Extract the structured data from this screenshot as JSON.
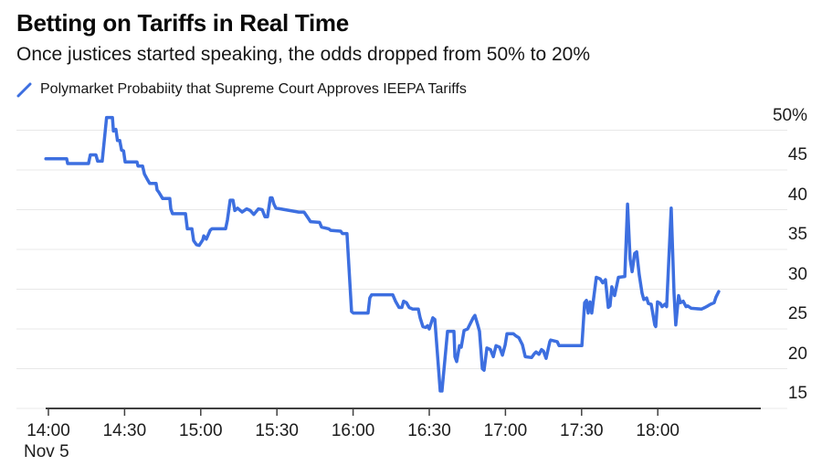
{
  "header": {
    "title": "Betting on Tariffs in Real Time",
    "subtitle": "Once justices started speaking, the odds dropped from 50% to 20%"
  },
  "legend": {
    "label": "Polymarket Probabiity that Supreme Court Approves IEEPA Tariffs"
  },
  "colors": {
    "line": "#3D6FE0",
    "grid": "#e8e8e8",
    "axis": "#404040",
    "text": "#1c1c1c"
  },
  "chart_data": {
    "type": "line",
    "title": "Betting on Tariffs in Real Time",
    "subtitle": "Once justices started speaking, the odds dropped from 50% to 20%",
    "x_axis": {
      "date_label": "Nov 5",
      "tick_labels": [
        "14:00",
        "14:30",
        "15:00",
        "15:30",
        "16:00",
        "16:30",
        "17:00",
        "17:30",
        "18:00"
      ],
      "tick_minutes": [
        0,
        30,
        60,
        90,
        120,
        150,
        180,
        210,
        240
      ],
      "unit": "time of day"
    },
    "y_axis": {
      "tick_labels": [
        "50%",
        "45",
        "40",
        "35",
        "30",
        "25",
        "20",
        "15"
      ],
      "tick_values": [
        50,
        45,
        40,
        35,
        30,
        25,
        20,
        15
      ],
      "min": 15,
      "max": 50,
      "unit": "percent probability"
    },
    "grid": true,
    "legend_position": "top-left",
    "series": [
      {
        "name": "Polymarket Probabiity that Supreme Court Approves IEEPA Tariffs",
        "color": "#3D6FE0",
        "points": [
          [
            -1,
            46.4
          ],
          [
            7.2,
            46.4
          ],
          [
            7.6,
            45.8
          ],
          [
            15.8,
            45.8
          ],
          [
            16.5,
            46.9
          ],
          [
            18.7,
            46.9
          ],
          [
            19.4,
            46.1
          ],
          [
            21.2,
            46.1
          ],
          [
            22.9,
            51.6
          ],
          [
            25.2,
            51.6
          ],
          [
            25.6,
            49.9
          ],
          [
            26.6,
            50.1
          ],
          [
            27.2,
            48.7
          ],
          [
            28.1,
            48.7
          ],
          [
            28.8,
            47.5
          ],
          [
            29.6,
            47.4
          ],
          [
            30.2,
            46
          ],
          [
            34.9,
            46
          ],
          [
            35.3,
            45.5
          ],
          [
            37.1,
            45.5
          ],
          [
            37.8,
            44.5
          ],
          [
            38.8,
            43.9
          ],
          [
            39.9,
            43.3
          ],
          [
            42.4,
            43.3
          ],
          [
            42.8,
            42.5
          ],
          [
            43.5,
            42.2
          ],
          [
            45,
            41.4
          ],
          [
            47.8,
            41.4
          ],
          [
            48.2,
            40.1
          ],
          [
            48.9,
            39.5
          ],
          [
            54,
            39.5
          ],
          [
            54.7,
            37.6
          ],
          [
            56.5,
            37.6
          ],
          [
            57.2,
            36.1
          ],
          [
            58.3,
            35.6
          ],
          [
            59.4,
            35.5
          ],
          [
            60.8,
            36.2
          ],
          [
            61.2,
            36.7
          ],
          [
            62.2,
            36.3
          ],
          [
            63.7,
            37.4
          ],
          [
            64.4,
            37.6
          ],
          [
            69.8,
            37.6
          ],
          [
            70.5,
            38.7
          ],
          [
            71.6,
            41.2
          ],
          [
            72.7,
            41.2
          ],
          [
            73.4,
            39.9
          ],
          [
            74.5,
            40.2
          ],
          [
            76.3,
            39.7
          ],
          [
            78.1,
            40.1
          ],
          [
            79.5,
            39.9
          ],
          [
            80.9,
            39.4
          ],
          [
            82.7,
            40.1
          ],
          [
            84.2,
            40
          ],
          [
            85.3,
            39.1
          ],
          [
            86.3,
            39.1
          ],
          [
            87.4,
            41.5
          ],
          [
            88.1,
            41.5
          ],
          [
            88.8,
            40.7
          ],
          [
            89.6,
            40.2
          ],
          [
            91.4,
            40.1
          ],
          [
            95,
            39.9
          ],
          [
            98.6,
            39.7
          ],
          [
            100.7,
            39.7
          ],
          [
            102.2,
            39
          ],
          [
            103.2,
            38.5
          ],
          [
            106.8,
            38.4
          ],
          [
            107.6,
            37.8
          ],
          [
            110.4,
            37.6
          ],
          [
            111.2,
            37.4
          ],
          [
            115.1,
            37.3
          ],
          [
            115.8,
            37
          ],
          [
            117.6,
            37
          ],
          [
            119.4,
            27.2
          ],
          [
            120.1,
            27
          ],
          [
            125.9,
            27
          ],
          [
            126.6,
            28.9
          ],
          [
            127.3,
            29.3
          ],
          [
            135.6,
            29.3
          ],
          [
            136.7,
            28.5
          ],
          [
            138.1,
            27.7
          ],
          [
            139.2,
            27.7
          ],
          [
            139.9,
            28.5
          ],
          [
            141,
            28.3
          ],
          [
            142.1,
            27.7
          ],
          [
            143.5,
            27.5
          ],
          [
            145.7,
            27.5
          ],
          [
            146.4,
            26.4
          ],
          [
            147.5,
            25.3
          ],
          [
            148.6,
            25.2
          ],
          [
            149.3,
            25.4
          ],
          [
            150,
            25
          ],
          [
            151.4,
            26.4
          ],
          [
            152.2,
            26.2
          ],
          [
            154.3,
            17.2
          ],
          [
            155,
            17.2
          ],
          [
            157.2,
            24.7
          ],
          [
            159.7,
            24.7
          ],
          [
            160.1,
            21.5
          ],
          [
            160.8,
            20.9
          ],
          [
            161.9,
            22.9
          ],
          [
            162.6,
            22.7
          ],
          [
            163.7,
            24.8
          ],
          [
            165.1,
            25
          ],
          [
            167.3,
            26.4
          ],
          [
            168,
            26.7
          ],
          [
            169.1,
            25.5
          ],
          [
            169.8,
            24.7
          ],
          [
            170.9,
            20
          ],
          [
            171.6,
            19.8
          ],
          [
            172.7,
            22.6
          ],
          [
            174.1,
            22.4
          ],
          [
            175.2,
            21.5
          ],
          [
            176.3,
            22.9
          ],
          [
            177.7,
            22.7
          ],
          [
            178.8,
            21.7
          ],
          [
            179.9,
            23
          ],
          [
            180.6,
            24.4
          ],
          [
            183.1,
            24.4
          ],
          [
            184.2,
            24.1
          ],
          [
            185.3,
            23.9
          ],
          [
            186.7,
            23
          ],
          [
            187.8,
            21.5
          ],
          [
            190.3,
            21.4
          ],
          [
            191.4,
            21.9
          ],
          [
            192.1,
            22.1
          ],
          [
            193.2,
            21.8
          ],
          [
            194.2,
            22.4
          ],
          [
            195,
            22.2
          ],
          [
            196,
            21.3
          ],
          [
            197.5,
            23.4
          ],
          [
            197.8,
            23.6
          ],
          [
            200.4,
            23.4
          ],
          [
            201.1,
            22.9
          ],
          [
            210.1,
            22.9
          ],
          [
            211.2,
            28.3
          ],
          [
            211.9,
            28.6
          ],
          [
            212.6,
            27
          ],
          [
            213.3,
            28.4
          ],
          [
            214,
            27
          ],
          [
            215.8,
            31.5
          ],
          [
            217.3,
            31.3
          ],
          [
            218.3,
            30.8
          ],
          [
            219.4,
            31.2
          ],
          [
            220.5,
            27.7
          ],
          [
            221.2,
            27.9
          ],
          [
            221.9,
            30.3
          ],
          [
            223,
            29.2
          ],
          [
            224.5,
            31.5
          ],
          [
            227,
            31.6
          ],
          [
            228.1,
            40.7
          ],
          [
            229.1,
            33.8
          ],
          [
            229.9,
            32.2
          ],
          [
            230.9,
            34.5
          ],
          [
            231.7,
            34.7
          ],
          [
            232.7,
            31.8
          ],
          [
            233.8,
            29.5
          ],
          [
            234.5,
            28.7
          ],
          [
            235.6,
            28.9
          ],
          [
            236.3,
            28.2
          ],
          [
            237.4,
            28.1
          ],
          [
            238.8,
            25.5
          ],
          [
            239.2,
            25.3
          ],
          [
            239.9,
            28.4
          ],
          [
            241,
            28.2
          ],
          [
            241.7,
            27.8
          ],
          [
            242.8,
            28.1
          ],
          [
            243.5,
            27.8
          ],
          [
            245.3,
            40.2
          ],
          [
            246.4,
            29.5
          ],
          [
            247.1,
            25.5
          ],
          [
            248.2,
            29.2
          ],
          [
            248.9,
            28.3
          ],
          [
            250,
            28.5
          ],
          [
            251.1,
            27.8
          ],
          [
            251.8,
            27.9
          ],
          [
            253.2,
            27.6
          ],
          [
            257.2,
            27.5
          ],
          [
            258.6,
            27.7
          ],
          [
            259.7,
            27.9
          ],
          [
            260.8,
            28.1
          ],
          [
            262.2,
            28.3
          ],
          [
            262.9,
            29
          ],
          [
            264,
            29.7
          ]
        ]
      }
    ]
  }
}
